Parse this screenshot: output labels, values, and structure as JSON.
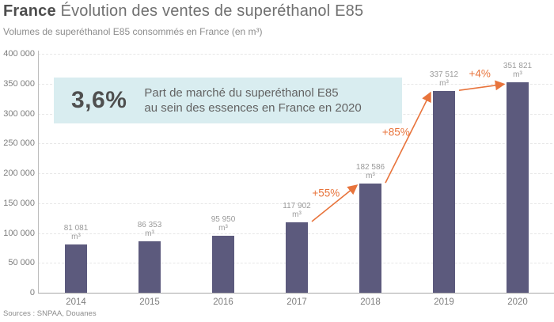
{
  "header": {
    "title_bold": "France",
    "title_rest": "Évolution des ventes de superéthanol E85",
    "subtitle": "Volumes de superéthanol E85 consommés en France (en m³)"
  },
  "callout": {
    "value": "3,6%",
    "line1": "Part de marché du superéthanol E85",
    "line2": "au sein des essences en France en 2020"
  },
  "source": "Sources : SNPAA, Douanes",
  "chart_data": {
    "type": "bar",
    "title": "Évolution des ventes de superéthanol E85 en France",
    "categories": [
      "2014",
      "2015",
      "2016",
      "2017",
      "2018",
      "2019",
      "2020"
    ],
    "values": [
      81081,
      86353,
      95950,
      117902,
      182586,
      337512,
      351821
    ],
    "value_labels": [
      "81 081",
      "86 353",
      "95 950",
      "117 902",
      "182 586",
      "337 512",
      "351 821"
    ],
    "unit": "m³",
    "xlabel": "",
    "ylabel": "",
    "ylim": [
      0,
      400000
    ],
    "ytick_step": 50000,
    "ytick_labels": [
      "0",
      "50 000",
      "100 000",
      "150 000",
      "200 000",
      "250 000",
      "300 000",
      "350 000",
      "400 000"
    ],
    "grid": "horizontal-dashed",
    "legend": "none",
    "annotations": [
      {
        "from": "2017",
        "to": "2018",
        "label": "+55%"
      },
      {
        "from": "2018",
        "to": "2019",
        "label": "+85%"
      },
      {
        "from": "2019",
        "to": "2020",
        "label": "+4%"
      }
    ],
    "colors": {
      "bar": "#5c5a7d",
      "arrow": "#e8743c",
      "callout_bg": "#d9edf0",
      "grid": "#e7e7e7",
      "axis": "#a8a8a8"
    }
  }
}
